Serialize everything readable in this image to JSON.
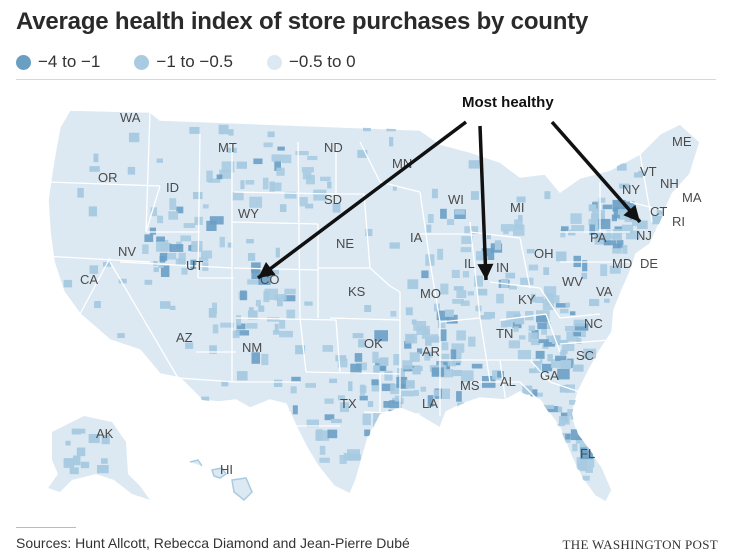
{
  "title": "Average health index of store purchases by county",
  "legend": {
    "items": [
      {
        "label": "−4 to −1",
        "color": "#6a9fc4"
      },
      {
        "label": "−1 to −0.5",
        "color": "#a9cbe1"
      },
      {
        "label": "−0.5 to 0",
        "color": "#dce9f3"
      }
    ]
  },
  "map": {
    "base_color": "#dce9f3",
    "mid_color": "#a9cbe1",
    "dark_color": "#6a9fc4",
    "border_color": "#ffffff",
    "annotation": "Most healthy",
    "annotation_targets": [
      "CO",
      "IL",
      "NJ"
    ],
    "states": [
      "WA",
      "OR",
      "CA",
      "ID",
      "NV",
      "MT",
      "WY",
      "UT",
      "AZ",
      "CO",
      "NM",
      "ND",
      "SD",
      "NE",
      "KS",
      "OK",
      "TX",
      "MN",
      "IA",
      "MO",
      "AR",
      "LA",
      "WI",
      "IL",
      "MS",
      "MI",
      "IN",
      "KY",
      "TN",
      "AL",
      "OH",
      "GA",
      "FL",
      "SC",
      "NC",
      "VA",
      "WV",
      "PA",
      "NY",
      "VT",
      "NH",
      "ME",
      "MA",
      "CT",
      "RI",
      "NJ",
      "MD",
      "DE",
      "AK",
      "HI"
    ]
  },
  "footer": {
    "source": "Sources: Hunt Allcott, Rebecca Diamond and Jean-Pierre Dubé",
    "credit": "THE WASHINGTON POST"
  }
}
